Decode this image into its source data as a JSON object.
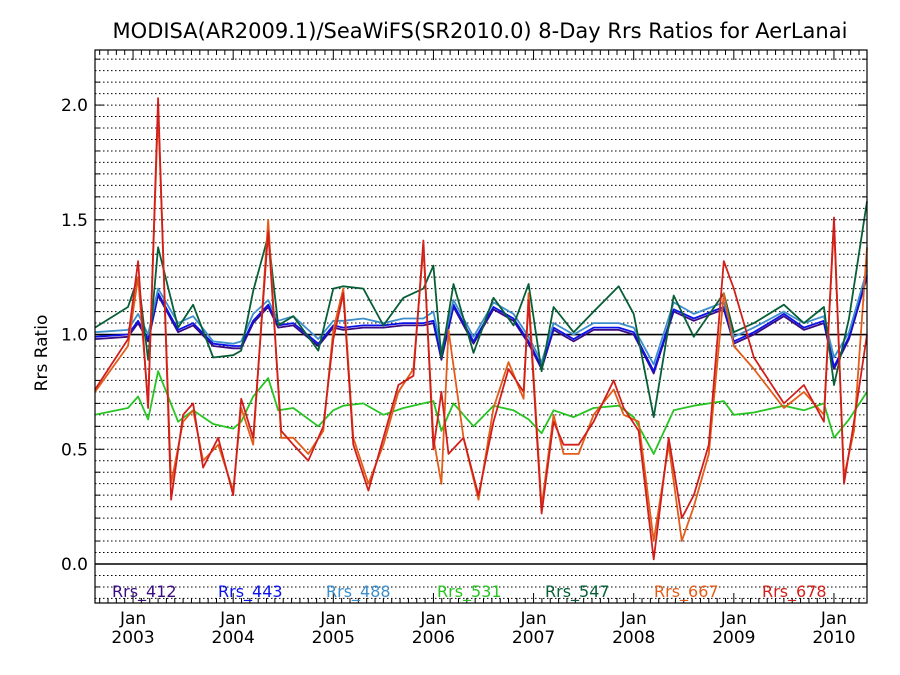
{
  "chart_data": {
    "type": "line",
    "title": "MODISA(AR2009.1)/SeaWiFS(SR2010.0) 8-Day Rrs Ratios for AerLanai",
    "ylabel": "Rrs Ratio",
    "xlim": [
      2002.62,
      2010.33
    ],
    "ylim": [
      -0.17,
      2.24
    ],
    "yticks": [
      0.0,
      0.5,
      1.0,
      1.5,
      2.0
    ],
    "ytick_labels": [
      "0.0",
      "0.5",
      "1.0",
      "1.5",
      "2.0"
    ],
    "xticks": [
      {
        "x": 2003.0,
        "month": "Jan",
        "year": "2003"
      },
      {
        "x": 2004.0,
        "month": "Jan",
        "year": "2004"
      },
      {
        "x": 2005.0,
        "month": "Jan",
        "year": "2005"
      },
      {
        "x": 2006.0,
        "month": "Jan",
        "year": "2006"
      },
      {
        "x": 2007.0,
        "month": "Jan",
        "year": "2007"
      },
      {
        "x": 2008.0,
        "month": "Jan",
        "year": "2008"
      },
      {
        "x": 2009.0,
        "month": "Jan",
        "year": "2009"
      },
      {
        "x": 2010.0,
        "month": "Jan",
        "year": "2010"
      }
    ],
    "reference_lines": [
      1.0,
      0.0
    ],
    "grid": "horizontal dotted",
    "legend_position": "bottom",
    "series": [
      {
        "name": "Rrs_412",
        "color": "#3a0c84",
        "x": [
          2002.62,
          2002.95,
          2003.05,
          2003.15,
          2003.25,
          2003.45,
          2003.6,
          2003.8,
          2004.0,
          2004.08,
          2004.2,
          2004.35,
          2004.45,
          2004.6,
          2004.85,
          2005.0,
          2005.1,
          2005.3,
          2005.5,
          2005.7,
          2005.9,
          2006.0,
          2006.08,
          2006.2,
          2006.4,
          2006.6,
          2006.8,
          2006.95,
          2007.08,
          2007.2,
          2007.4,
          2007.6,
          2007.85,
          2008.0,
          2008.2,
          2008.4,
          2008.6,
          2008.9,
          2009.0,
          2009.2,
          2009.5,
          2009.7,
          2009.9,
          2010.0,
          2010.15,
          2010.33
        ],
        "values": [
          0.98,
          0.99,
          1.05,
          0.97,
          1.17,
          1.01,
          1.04,
          0.95,
          0.94,
          0.94,
          1.05,
          1.12,
          1.03,
          1.04,
          0.95,
          1.03,
          1.02,
          1.03,
          1.03,
          1.04,
          1.04,
          1.05,
          0.89,
          1.12,
          0.96,
          1.11,
          1.06,
          0.96,
          0.85,
          1.02,
          0.97,
          1.02,
          1.02,
          1.0,
          0.83,
          1.1,
          1.06,
          1.11,
          0.96,
          1.0,
          1.08,
          1.02,
          1.05,
          0.85,
          0.98,
          1.25
        ]
      },
      {
        "name": "Rrs_443",
        "color": "#0b12e8",
        "x": [
          2002.62,
          2002.95,
          2003.05,
          2003.15,
          2003.25,
          2003.45,
          2003.6,
          2003.8,
          2004.0,
          2004.08,
          2004.2,
          2004.35,
          2004.45,
          2004.6,
          2004.85,
          2005.0,
          2005.1,
          2005.3,
          2005.5,
          2005.7,
          2005.9,
          2006.0,
          2006.08,
          2006.2,
          2006.4,
          2006.6,
          2006.8,
          2006.95,
          2007.08,
          2007.2,
          2007.4,
          2007.6,
          2007.85,
          2008.0,
          2008.2,
          2008.4,
          2008.6,
          2008.9,
          2009.0,
          2009.2,
          2009.5,
          2009.7,
          2009.9,
          2010.0,
          2010.15,
          2010.33
        ],
        "values": [
          0.99,
          1.0,
          1.06,
          0.98,
          1.18,
          1.02,
          1.05,
          0.96,
          0.95,
          0.95,
          1.06,
          1.13,
          1.04,
          1.05,
          0.96,
          1.04,
          1.03,
          1.04,
          1.04,
          1.05,
          1.05,
          1.06,
          0.9,
          1.13,
          0.97,
          1.12,
          1.07,
          0.97,
          0.86,
          1.03,
          0.98,
          1.03,
          1.03,
          1.01,
          0.84,
          1.11,
          1.07,
          1.12,
          0.97,
          1.01,
          1.09,
          1.03,
          1.06,
          0.86,
          0.99,
          1.26
        ]
      },
      {
        "name": "Rrs_488",
        "color": "#3d8ecb",
        "x": [
          2002.62,
          2002.95,
          2003.05,
          2003.15,
          2003.25,
          2003.45,
          2003.6,
          2003.8,
          2004.0,
          2004.08,
          2004.2,
          2004.35,
          2004.45,
          2004.6,
          2004.85,
          2005.0,
          2005.1,
          2005.3,
          2005.5,
          2005.7,
          2005.9,
          2006.0,
          2006.08,
          2006.2,
          2006.4,
          2006.6,
          2006.8,
          2006.95,
          2007.08,
          2007.2,
          2007.4,
          2007.6,
          2007.85,
          2008.0,
          2008.2,
          2008.4,
          2008.6,
          2008.9,
          2009.0,
          2009.2,
          2009.5,
          2009.7,
          2009.9,
          2010.0,
          2010.15,
          2010.33
        ],
        "values": [
          1.01,
          1.02,
          1.09,
          1.0,
          1.2,
          1.05,
          1.08,
          0.97,
          0.96,
          0.97,
          1.09,
          1.15,
          1.06,
          1.08,
          0.98,
          1.06,
          1.06,
          1.07,
          1.05,
          1.07,
          1.07,
          1.1,
          0.93,
          1.15,
          0.99,
          1.14,
          1.09,
          0.99,
          0.88,
          1.05,
          1.0,
          1.05,
          1.05,
          1.03,
          0.87,
          1.14,
          1.09,
          1.14,
          0.99,
          1.03,
          1.1,
          1.05,
          1.08,
          0.9,
          1.01,
          1.28
        ]
      },
      {
        "name": "Rrs_531",
        "color": "#27c423",
        "x": [
          2002.62,
          2002.95,
          2003.05,
          2003.15,
          2003.25,
          2003.45,
          2003.6,
          2003.8,
          2004.0,
          2004.08,
          2004.2,
          2004.35,
          2004.45,
          2004.6,
          2004.85,
          2005.0,
          2005.1,
          2005.3,
          2005.5,
          2005.7,
          2005.9,
          2006.0,
          2006.08,
          2006.2,
          2006.4,
          2006.6,
          2006.8,
          2006.95,
          2007.08,
          2007.2,
          2007.4,
          2007.6,
          2007.85,
          2008.0,
          2008.2,
          2008.4,
          2008.6,
          2008.9,
          2009.0,
          2009.2,
          2009.5,
          2009.7,
          2009.9,
          2010.0,
          2010.15,
          2010.33
        ],
        "values": [
          0.65,
          0.68,
          0.73,
          0.63,
          0.84,
          0.62,
          0.67,
          0.61,
          0.59,
          0.62,
          0.73,
          0.81,
          0.67,
          0.68,
          0.6,
          0.67,
          0.69,
          0.7,
          0.65,
          0.68,
          0.7,
          0.71,
          0.58,
          0.7,
          0.6,
          0.69,
          0.67,
          0.63,
          0.57,
          0.67,
          0.64,
          0.68,
          0.69,
          0.64,
          0.48,
          0.67,
          0.69,
          0.71,
          0.65,
          0.66,
          0.69,
          0.67,
          0.7,
          0.55,
          0.63,
          0.75
        ]
      },
      {
        "name": "Rrs_547",
        "color": "#075f37",
        "x": [
          2002.62,
          2002.95,
          2003.05,
          2003.15,
          2003.25,
          2003.45,
          2003.6,
          2003.8,
          2004.0,
          2004.08,
          2004.2,
          2004.35,
          2004.45,
          2004.6,
          2004.85,
          2005.0,
          2005.1,
          2005.3,
          2005.5,
          2005.7,
          2005.9,
          2006.0,
          2006.08,
          2006.2,
          2006.4,
          2006.6,
          2006.8,
          2006.95,
          2007.08,
          2007.2,
          2007.4,
          2007.6,
          2007.85,
          2008.0,
          2008.2,
          2008.4,
          2008.6,
          2008.9,
          2009.0,
          2009.2,
          2009.5,
          2009.7,
          2009.9,
          2010.0,
          2010.15,
          2010.33
        ],
        "values": [
          1.03,
          1.12,
          1.25,
          0.89,
          1.38,
          1.03,
          1.13,
          0.9,
          0.91,
          0.93,
          1.19,
          1.43,
          1.04,
          1.08,
          0.93,
          1.2,
          1.21,
          1.2,
          1.04,
          1.16,
          1.2,
          1.3,
          0.9,
          1.22,
          0.92,
          1.16,
          1.04,
          1.22,
          0.84,
          1.12,
          1.01,
          1.1,
          1.21,
          1.09,
          0.64,
          1.17,
          0.99,
          1.18,
          1.01,
          1.05,
          1.13,
          1.05,
          1.12,
          0.78,
          1.07,
          1.58
        ]
      },
      {
        "name": "Rrs_667",
        "color": "#e35d1a",
        "x": [
          2002.62,
          2002.95,
          2003.05,
          2003.15,
          2003.25,
          2003.38,
          2003.5,
          2003.6,
          2003.7,
          2003.85,
          2004.0,
          2004.08,
          2004.2,
          2004.35,
          2004.48,
          2004.6,
          2004.75,
          2004.9,
          2005.0,
          2005.1,
          2005.2,
          2005.35,
          2005.5,
          2005.65,
          2005.8,
          2005.9,
          2006.0,
          2006.08,
          2006.15,
          2006.3,
          2006.45,
          2006.6,
          2006.75,
          2006.9,
          2006.95,
          2007.08,
          2007.2,
          2007.3,
          2007.45,
          2007.6,
          2007.8,
          2007.9,
          2008.05,
          2008.2,
          2008.35,
          2008.48,
          2008.6,
          2008.75,
          2008.9,
          2009.0,
          2009.2,
          2009.5,
          2009.7,
          2009.9,
          2010.0,
          2010.1,
          2010.2,
          2010.33
        ],
        "values": [
          0.75,
          0.95,
          1.25,
          0.7,
          1.98,
          0.35,
          0.62,
          0.67,
          0.45,
          0.52,
          0.32,
          0.68,
          0.52,
          1.5,
          0.55,
          0.55,
          0.48,
          0.58,
          1.02,
          1.2,
          0.55,
          0.35,
          0.52,
          0.75,
          0.85,
          1.38,
          0.55,
          0.35,
          1.02,
          0.55,
          0.28,
          0.68,
          0.88,
          0.72,
          1.18,
          0.25,
          0.65,
          0.48,
          0.48,
          0.65,
          0.76,
          0.65,
          0.62,
          0.1,
          0.52,
          0.1,
          0.25,
          0.48,
          1.18,
          0.95,
          0.85,
          0.68,
          0.75,
          0.65,
          1.48,
          0.38,
          0.58,
          1.38
        ]
      },
      {
        "name": "Rrs_678",
        "color": "#d1201c",
        "x": [
          2002.62,
          2002.95,
          2003.05,
          2003.15,
          2003.25,
          2003.38,
          2003.5,
          2003.6,
          2003.7,
          2003.85,
          2004.0,
          2004.08,
          2004.2,
          2004.35,
          2004.48,
          2004.6,
          2004.75,
          2004.9,
          2005.0,
          2005.1,
          2005.2,
          2005.35,
          2005.5,
          2005.65,
          2005.8,
          2005.9,
          2006.0,
          2006.08,
          2006.15,
          2006.3,
          2006.45,
          2006.6,
          2006.75,
          2006.9,
          2006.95,
          2007.08,
          2007.2,
          2007.3,
          2007.45,
          2007.6,
          2007.8,
          2007.9,
          2008.05,
          2008.2,
          2008.35,
          2008.48,
          2008.6,
          2008.75,
          2008.9,
          2009.0,
          2009.2,
          2009.5,
          2009.7,
          2009.9,
          2010.0,
          2010.1,
          2010.2,
          2010.33
        ],
        "values": [
          0.76,
          0.98,
          1.32,
          0.68,
          2.03,
          0.28,
          0.65,
          0.7,
          0.42,
          0.55,
          0.3,
          0.72,
          0.55,
          1.45,
          0.58,
          0.52,
          0.45,
          0.6,
          0.98,
          1.18,
          0.52,
          0.32,
          0.55,
          0.78,
          0.82,
          1.41,
          0.5,
          0.75,
          0.48,
          0.55,
          0.3,
          0.62,
          0.85,
          0.75,
          1.15,
          0.22,
          0.62,
          0.52,
          0.52,
          0.62,
          0.8,
          0.68,
          0.58,
          0.02,
          0.55,
          0.2,
          0.3,
          0.52,
          1.32,
          1.2,
          0.9,
          0.7,
          0.78,
          0.62,
          1.51,
          0.35,
          0.62,
          1.0
        ]
      }
    ],
    "legend": [
      {
        "label": "Rrs_412",
        "color": "#3a0c84"
      },
      {
        "label": "Rrs_443",
        "color": "#0b12e8"
      },
      {
        "label": "Rrs_488",
        "color": "#3d8ecb"
      },
      {
        "label": "Rrs_531",
        "color": "#27c423"
      },
      {
        "label": "Rrs_547",
        "color": "#075f37"
      },
      {
        "label": "Rrs_667",
        "color": "#e35d1a"
      },
      {
        "label": "Rrs_678",
        "color": "#d1201c"
      }
    ]
  }
}
